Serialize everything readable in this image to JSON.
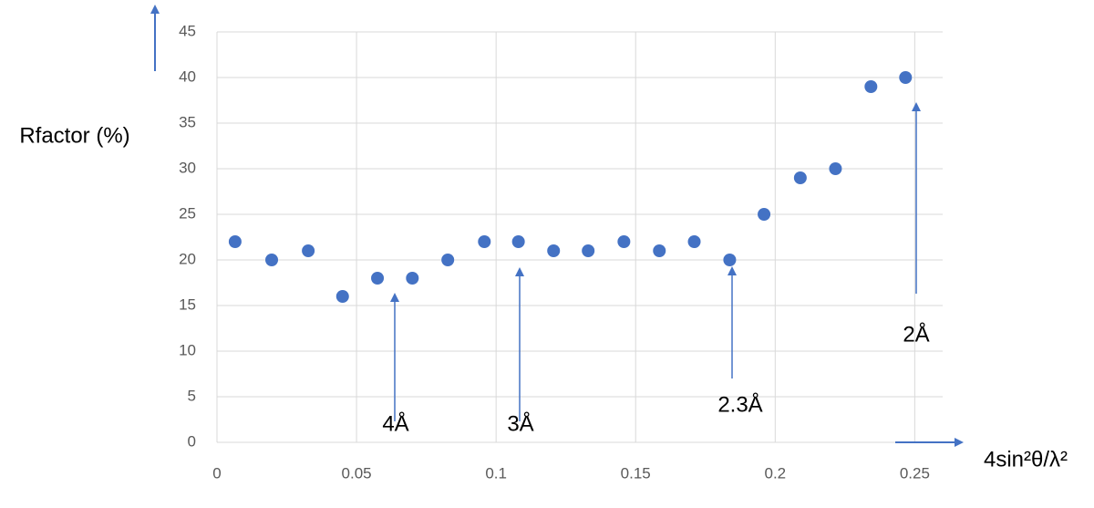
{
  "chart_data": {
    "type": "scatter",
    "y_label": "Rfactor (%)",
    "x_label": "4sin²θ/λ²",
    "color": "#4472c4",
    "grid": true,
    "xlim": [
      0,
      0.26
    ],
    "xticks": [
      0,
      0.05,
      0.1,
      0.15,
      0.2,
      0.25
    ],
    "ylim": [
      0,
      45
    ],
    "yticks": [
      0,
      5,
      10,
      15,
      20,
      25,
      30,
      35,
      40,
      45
    ],
    "x": [
      0.0065,
      0.0196,
      0.0327,
      0.045,
      0.0575,
      0.07,
      0.0827,
      0.0958,
      0.108,
      0.1206,
      0.133,
      0.1458,
      0.1585,
      0.171,
      0.1837,
      0.196,
      0.209,
      0.2216,
      0.2343,
      0.2467
    ],
    "values": [
      22,
      20,
      21,
      16,
      18,
      18,
      20,
      22,
      22,
      21,
      21,
      22,
      21,
      22,
      20,
      25,
      29,
      30,
      39,
      40
    ],
    "annotations": [
      "4Å",
      "3Å",
      "2.3Å",
      "2Å"
    ]
  }
}
